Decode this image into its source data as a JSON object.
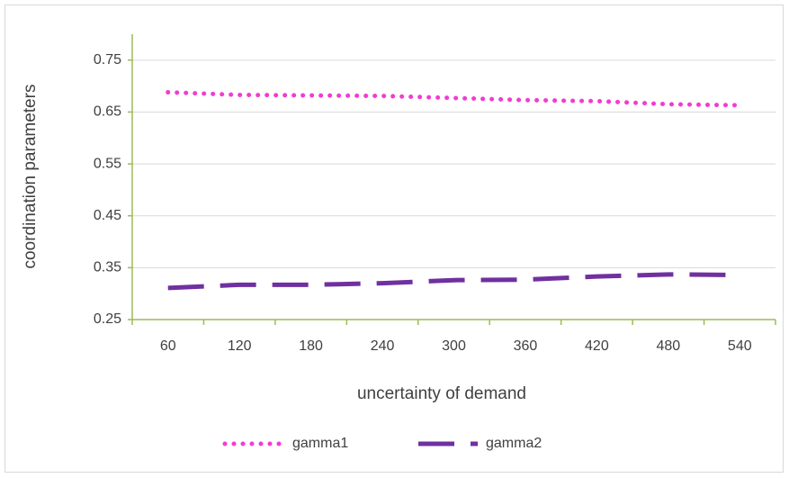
{
  "chart_data": {
    "type": "line",
    "x_label": "uncertainty of demand",
    "y_label": "coordination parameters",
    "categories": [
      60,
      120,
      180,
      240,
      300,
      360,
      420,
      480,
      540
    ],
    "series": [
      {
        "name": "gamma1",
        "color": "#f23bd2",
        "style": "dotted",
        "values": [
          0.688,
          0.683,
          0.682,
          0.681,
          0.677,
          0.673,
          0.671,
          0.665,
          0.663
        ]
      },
      {
        "name": "gamma2",
        "color": "#7030a0",
        "style": "dashed",
        "values": [
          0.311,
          0.317,
          0.317,
          0.32,
          0.326,
          0.327,
          0.333,
          0.337,
          0.336
        ]
      }
    ],
    "ylim": [
      0.25,
      0.8
    ],
    "yticks": [
      0.25,
      0.35,
      0.45,
      0.55,
      0.65,
      0.75
    ],
    "grid": true,
    "legend": "bottom"
  }
}
